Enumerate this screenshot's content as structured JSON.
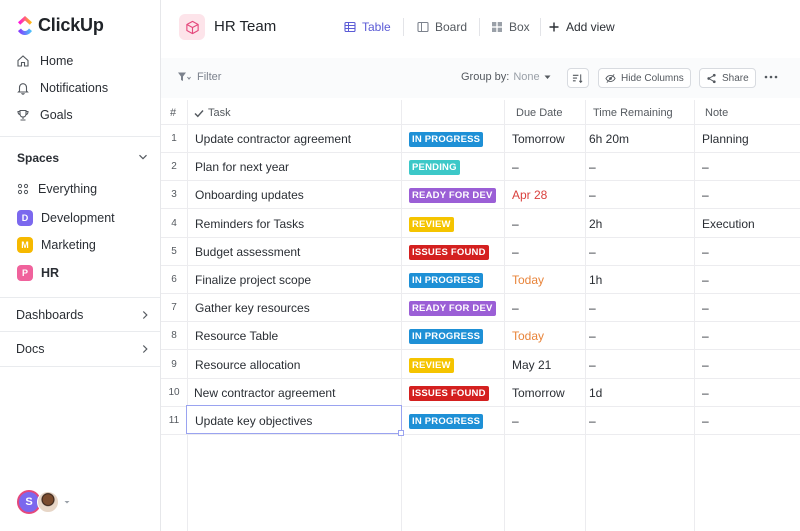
{
  "app": {
    "brand": "ClickUp"
  },
  "sidebar": {
    "nav": [
      {
        "label": "Home",
        "icon": "home-icon"
      },
      {
        "label": "Notifications",
        "icon": "bell-icon"
      },
      {
        "label": "Goals",
        "icon": "trophy-icon"
      }
    ],
    "spaces_label": "Spaces",
    "everything_label": "Everything",
    "spaces": [
      {
        "label": "Development",
        "letter": "D",
        "color": "#7b68ee"
      },
      {
        "label": "Marketing",
        "letter": "M",
        "color": "#f6b900"
      },
      {
        "label": "HR",
        "letter": "P",
        "color": "#f0629c"
      }
    ],
    "dashboards_label": "Dashboards",
    "docs_label": "Docs",
    "avatar_letter": "S"
  },
  "header": {
    "title": "HR Team",
    "tabs": [
      {
        "label": "Table",
        "icon": "table-icon",
        "active": true
      },
      {
        "label": "Board",
        "icon": "board-icon",
        "active": false
      },
      {
        "label": "Box",
        "icon": "box-icon",
        "active": false
      }
    ],
    "add_view_label": "Add view"
  },
  "toolbar": {
    "filter_label": "Filter",
    "group_by_label": "Group by:",
    "group_by_value": "None",
    "hide_columns_label": "Hide Columns",
    "share_label": "Share"
  },
  "table": {
    "columns": [
      "#",
      "Task",
      "Due Date",
      "Time Remaining",
      "Note"
    ],
    "rows": [
      {
        "num": "1",
        "task": "Update contractor agreement",
        "status": "IN PROGRESS",
        "status_color": "#1e90d6",
        "due": "Tomorrow",
        "due_color": "#2a2e34",
        "remaining": "6h 20m",
        "note": "Planning"
      },
      {
        "num": "2",
        "task": "Plan for next year",
        "status": "PENDING",
        "status_color": "#3cc8c8",
        "due": "–",
        "due_color": "#2a2e34",
        "remaining": "–",
        "note": "–"
      },
      {
        "num": "3",
        "task": "Onboarding updates",
        "status": "READY FOR DEV",
        "status_color": "#9b5fd6",
        "due": "Apr 28",
        "due_color": "#d9413e",
        "remaining": "–",
        "note": "–"
      },
      {
        "num": "4",
        "task": "Reminders for Tasks",
        "status": "REVIEW",
        "status_color": "#f5c400",
        "due": "–",
        "due_color": "#2a2e34",
        "remaining": "2h",
        "note": "Execution"
      },
      {
        "num": "5",
        "task": "Budget assessment",
        "status": "ISSUES FOUND",
        "status_color": "#d4201f",
        "due": "–",
        "due_color": "#2a2e34",
        "remaining": "–",
        "note": "–"
      },
      {
        "num": "6",
        "task": "Finalize project scope",
        "status": "IN PROGRESS",
        "status_color": "#1e90d6",
        "due": "Today",
        "due_color": "#e8843a",
        "remaining": "1h",
        "note": "–"
      },
      {
        "num": "7",
        "task": "Gather key resources",
        "status": "READY FOR DEV",
        "status_color": "#9b5fd6",
        "due": "–",
        "due_color": "#2a2e34",
        "remaining": "–",
        "note": "–"
      },
      {
        "num": "8",
        "task": "Resource Table",
        "status": "IN PROGRESS",
        "status_color": "#1e90d6",
        "due": "Today",
        "due_color": "#e8843a",
        "remaining": "–",
        "note": "–"
      },
      {
        "num": "9",
        "task": "Resource allocation",
        "status": "REVIEW",
        "status_color": "#f5c400",
        "due": "May 21",
        "due_color": "#2a2e34",
        "remaining": "–",
        "note": "–"
      },
      {
        "num": "10",
        "task": "New contractor agreement",
        "status": "ISSUES FOUND",
        "status_color": "#d4201f",
        "due": "Tomorrow",
        "due_color": "#2a2e34",
        "remaining": "1d",
        "note": "–"
      },
      {
        "num": "11",
        "task": "Update key objectives",
        "status": "IN PROGRESS",
        "status_color": "#1e90d6",
        "due": "–",
        "due_color": "#2a2e34",
        "remaining": "–",
        "note": "–"
      }
    ]
  }
}
